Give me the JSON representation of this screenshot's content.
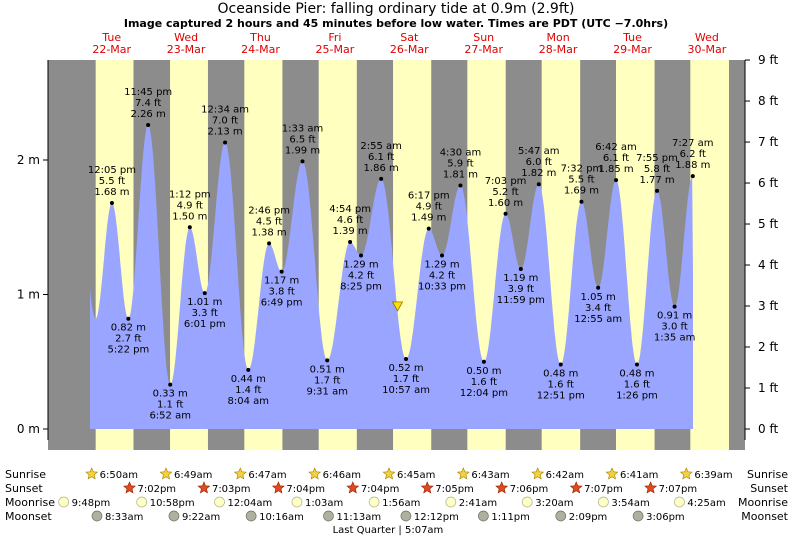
{
  "title": "Oceanside Pier: falling  ordinary tide at 0.9m (2.9ft)",
  "subtitle": "Image captured 2 hours and 45 minutes before low water. Times are PDT (UTC −7.0hrs)",
  "days": [
    {
      "dow": "Tue",
      "date": "22-Mar"
    },
    {
      "dow": "Wed",
      "date": "23-Mar"
    },
    {
      "dow": "Thu",
      "date": "24-Mar"
    },
    {
      "dow": "Fri",
      "date": "25-Mar"
    },
    {
      "dow": "Sat",
      "date": "26-Mar"
    },
    {
      "dow": "Sun",
      "date": "27-Mar"
    },
    {
      "dow": "Mon",
      "date": "28-Mar"
    },
    {
      "dow": "Tue",
      "date": "29-Mar"
    },
    {
      "dow": "Wed",
      "date": "30-Mar"
    }
  ],
  "colors": {
    "day": "#ffffc0",
    "night": "#8c8c8c",
    "tide_fill": "#9aa5ff",
    "date_label": "#e00000",
    "now_marker": "#ffe000"
  },
  "chart_data": {
    "type": "area",
    "y_left_unit": "m",
    "y_right_unit": "ft",
    "ylim_m": [
      -0.05,
      2.7
    ],
    "yticks_m": [
      "0 m",
      "1 m",
      "2 m"
    ],
    "yticks_ft": [
      "0 ft",
      "1 ft",
      "2 ft",
      "3 ft",
      "4 ft",
      "5 ft",
      "6 ft",
      "7 ft",
      "8 ft",
      "9 ft"
    ],
    "x_unit": "hours from Tue 22-Mar 00:00 PDT",
    "start_hours": 5,
    "end_hours": 199.5,
    "extremes": [
      {
        "t": 12.08,
        "m": 1.68,
        "time": "12:05 pm",
        "ft": "5.5 ft",
        "mlabel": "1.68 m",
        "kind": "high"
      },
      {
        "t": 17.37,
        "m": 0.82,
        "time": "5:22 pm",
        "ft": "2.7 ft",
        "mlabel": "0.82 m",
        "kind": "low"
      },
      {
        "t": 23.75,
        "m": 2.26,
        "time": "11:45 pm",
        "ft": "7.4 ft",
        "mlabel": "2.26 m",
        "kind": "high"
      },
      {
        "t": 30.87,
        "m": 0.33,
        "time": "6:52 am",
        "ft": "1.1 ft",
        "mlabel": "0.33 m",
        "kind": "low"
      },
      {
        "t": 37.2,
        "m": 1.5,
        "time": "1:12 pm",
        "ft": "4.9 ft",
        "mlabel": "1.50 m",
        "kind": "high"
      },
      {
        "t": 42.02,
        "m": 1.01,
        "time": "6:01 pm",
        "ft": "3.3 ft",
        "mlabel": "1.01 m",
        "kind": "low"
      },
      {
        "t": 48.57,
        "m": 2.13,
        "time": "12:34 am",
        "ft": "7.0 ft",
        "mlabel": "2.13 m",
        "kind": "high"
      },
      {
        "t": 56.07,
        "m": 0.44,
        "time": "8:04 am",
        "ft": "1.4 ft",
        "mlabel": "0.44 m",
        "kind": "low"
      },
      {
        "t": 62.77,
        "m": 1.38,
        "time": "2:46 pm",
        "ft": "4.5 ft",
        "mlabel": "1.38 m",
        "kind": "high"
      },
      {
        "t": 66.82,
        "m": 1.17,
        "time": "6:49 pm",
        "ft": "3.8 ft",
        "mlabel": "1.17 m",
        "kind": "low"
      },
      {
        "t": 73.55,
        "m": 1.99,
        "time": "1:33 am",
        "ft": "6.5 ft",
        "mlabel": "1.99 m",
        "kind": "high"
      },
      {
        "t": 81.52,
        "m": 0.51,
        "time": "9:31 am",
        "ft": "1.7 ft",
        "mlabel": "0.51 m",
        "kind": "low"
      },
      {
        "t": 88.9,
        "m": 1.39,
        "time": "4:54 pm",
        "ft": "4.6 ft",
        "mlabel": "1.39 m",
        "kind": "high"
      },
      {
        "t": 92.42,
        "m": 1.29,
        "time": "8:25 pm",
        "ft": "4.2 ft",
        "mlabel": "1.29 m",
        "kind": "low"
      },
      {
        "t": 98.92,
        "m": 1.86,
        "time": "2:55 am",
        "ft": "6.1 ft",
        "mlabel": "1.86 m",
        "kind": "high"
      },
      {
        "t": 106.95,
        "m": 0.52,
        "time": "10:57 am",
        "ft": "1.7 ft",
        "mlabel": "0.52 m",
        "kind": "low"
      },
      {
        "t": 114.28,
        "m": 1.49,
        "time": "6:17 pm",
        "ft": "4.9 ft",
        "mlabel": "1.49 m",
        "kind": "high"
      },
      {
        "t": 118.55,
        "m": 1.29,
        "time": "10:33 pm",
        "ft": "4.2 ft",
        "mlabel": "1.29 m",
        "kind": "low"
      },
      {
        "t": 124.5,
        "m": 1.81,
        "time": "4:30 am",
        "ft": "5.9 ft",
        "mlabel": "1.81 m",
        "kind": "high"
      },
      {
        "t": 132.07,
        "m": 0.5,
        "time": "12:04 pm",
        "ft": "1.6 ft",
        "mlabel": "0.50 m",
        "kind": "low"
      },
      {
        "t": 139.05,
        "m": 1.6,
        "time": "7:03 pm",
        "ft": "5.2 ft",
        "mlabel": "1.60 m",
        "kind": "high"
      },
      {
        "t": 143.98,
        "m": 1.19,
        "time": "11:59 pm",
        "ft": "3.9 ft",
        "mlabel": "1.19 m",
        "kind": "low"
      },
      {
        "t": 149.78,
        "m": 1.82,
        "time": "5:47 am",
        "ft": "6.0 ft",
        "mlabel": "1.82 m",
        "kind": "high"
      },
      {
        "t": 156.85,
        "m": 0.48,
        "time": "12:51 pm",
        "ft": "1.6 ft",
        "mlabel": "0.48 m",
        "kind": "low"
      },
      {
        "t": 163.53,
        "m": 1.69,
        "time": "7:32 pm",
        "ft": "5.5 ft",
        "mlabel": "1.69 m",
        "kind": "high"
      },
      {
        "t": 168.92,
        "m": 1.05,
        "time": "12:55 am",
        "ft": "3.4 ft",
        "mlabel": "1.05 m",
        "kind": "low"
      },
      {
        "t": 174.7,
        "m": 1.85,
        "time": "6:42 am",
        "ft": "6.1 ft",
        "mlabel": "1.85 m",
        "kind": "high"
      },
      {
        "t": 181.43,
        "m": 0.48,
        "time": "1:26 pm",
        "ft": "1.6 ft",
        "mlabel": "0.48 m",
        "kind": "low"
      },
      {
        "t": 187.92,
        "m": 1.77,
        "time": "7:55 pm",
        "ft": "5.8 ft",
        "mlabel": "1.77 m",
        "kind": "high"
      },
      {
        "t": 193.58,
        "m": 0.91,
        "time": "1:35 am",
        "ft": "3.0 ft",
        "mlabel": "0.91 m",
        "kind": "low"
      },
      {
        "t": 199.45,
        "m": 1.88,
        "time": "7:27 am",
        "ft": "6.2 ft",
        "mlabel": "1.88 m",
        "kind": "high"
      }
    ],
    "now": {
      "t": 104.2,
      "m": 0.9
    },
    "daylight": [
      {
        "rise": 6.83,
        "set": 19.03
      },
      {
        "rise": 30.82,
        "set": 43.05
      },
      {
        "rise": 54.78,
        "set": 67.07
      },
      {
        "rise": 78.77,
        "set": 91.07
      },
      {
        "rise": 102.75,
        "set": 115.08
      },
      {
        "rise": 126.72,
        "set": 139.1
      },
      {
        "rise": 150.7,
        "set": 163.12
      },
      {
        "rise": 174.68,
        "set": 187.12
      },
      {
        "rise": 198.65,
        "set": 211.13
      }
    ]
  },
  "almanac": {
    "labels": {
      "sunrise": "Sunrise",
      "sunset": "Sunset",
      "moonrise": "Moonrise",
      "moonset": "Moonset"
    },
    "sunrise": [
      {
        "t": 6.83,
        "label": "6:50am"
      },
      {
        "t": 30.82,
        "label": "6:49am"
      },
      {
        "t": 54.78,
        "label": "6:47am"
      },
      {
        "t": 78.77,
        "label": "6:46am"
      },
      {
        "t": 102.75,
        "label": "6:45am"
      },
      {
        "t": 126.72,
        "label": "6:43am"
      },
      {
        "t": 150.7,
        "label": "6:42am"
      },
      {
        "t": 174.68,
        "label": "6:41am"
      },
      {
        "t": 198.65,
        "label": "6:39am"
      }
    ],
    "sunset": [
      {
        "t": 19.03,
        "label": "7:02pm"
      },
      {
        "t": 43.05,
        "label": "7:03pm"
      },
      {
        "t": 67.07,
        "label": "7:04pm"
      },
      {
        "t": 91.07,
        "label": "7:04pm"
      },
      {
        "t": 115.08,
        "label": "7:05pm"
      },
      {
        "t": 139.1,
        "label": "7:06pm"
      },
      {
        "t": 163.12,
        "label": "7:07pm"
      },
      {
        "t": 187.12,
        "label": "7:07pm"
      }
    ],
    "moonrise": [
      {
        "t": -2.2,
        "label": "9:48pm"
      },
      {
        "t": 22.97,
        "label": "10:58pm"
      },
      {
        "t": 48.07,
        "label": "12:04am"
      },
      {
        "t": 73.05,
        "label": "1:03am"
      },
      {
        "t": 97.93,
        "label": "1:56am"
      },
      {
        "t": 122.68,
        "label": "2:41am"
      },
      {
        "t": 147.33,
        "label": "3:20am"
      },
      {
        "t": 171.9,
        "label": "3:54am"
      },
      {
        "t": 196.42,
        "label": "4:25am"
      }
    ],
    "moonset": [
      {
        "t": 8.55,
        "label": "8:33am"
      },
      {
        "t": 33.37,
        "label": "9:22am"
      },
      {
        "t": 58.27,
        "label": "10:16am"
      },
      {
        "t": 83.22,
        "label": "11:13am"
      },
      {
        "t": 108.2,
        "label": "12:12pm"
      },
      {
        "t": 133.18,
        "label": "1:11pm"
      },
      {
        "t": 158.15,
        "label": "2:09pm"
      },
      {
        "t": 183.1,
        "label": "3:06pm"
      }
    ],
    "moon_phase": {
      "t": 101.12,
      "label": "Last Quarter | 5:07am"
    }
  }
}
